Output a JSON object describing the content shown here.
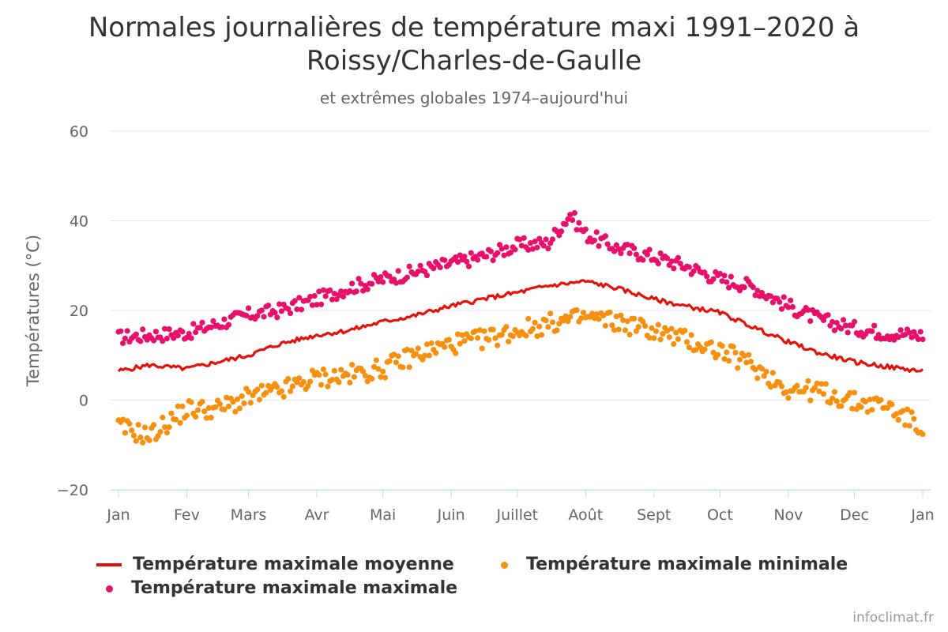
{
  "title_line1": "Normales journalières de température maxi 1991–2020 à",
  "title_line2": "Roissy/Charles-de-Gaulle",
  "subtitle": "et extrêmes globales 1974–aujourd'hui",
  "credit": "infoclimat.fr",
  "legend": [
    {
      "label": "Température maximale moyenne",
      "symbol": "line",
      "color": "#e3120b"
    },
    {
      "label": "Température maximale minimale",
      "symbol": "dot",
      "color": "#f7900f"
    },
    {
      "label": "Température maximale maximale",
      "symbol": "dot",
      "color": "#e8106a"
    }
  ],
  "chart_data": {
    "type": "line",
    "title": "Normales journalières de température maxi 1991–2020 à Roissy/Charles-de-Gaulle",
    "subtitle": "et extrêmes globales 1974–aujourd'hui",
    "xlabel": "",
    "ylabel": "Températures (°C)",
    "ylim": [
      -20,
      60
    ],
    "yticks": [
      -20,
      0,
      20,
      40,
      60
    ],
    "ytick_labels": [
      "−20",
      "0",
      "20",
      "40",
      "60"
    ],
    "xticks": [
      "Jan",
      "Fev",
      "Mars",
      "Avr",
      "Mai",
      "Juin",
      "Juillet",
      "Août",
      "Sept",
      "Oct",
      "Nov",
      "Dec",
      "Jan"
    ],
    "x_unit": "month start, 1st of month; last tick = next January",
    "grid": true,
    "legend_position": "bottom",
    "series": [
      {
        "name": "Température maximale moyenne",
        "type": "line",
        "color": "#e3120b",
        "sample_points": [
          {
            "x": "01-01",
            "y": 6.5
          },
          {
            "x": "01-15",
            "y": 7.8
          },
          {
            "x": "02-01",
            "y": 7.0
          },
          {
            "x": "02-15",
            "y": 8.5
          },
          {
            "x": "03-01",
            "y": 10.0
          },
          {
            "x": "03-15",
            "y": 12.5
          },
          {
            "x": "04-01",
            "y": 14.5
          },
          {
            "x": "04-15",
            "y": 15.5
          },
          {
            "x": "05-01",
            "y": 17.5
          },
          {
            "x": "05-15",
            "y": 18.8
          },
          {
            "x": "06-01",
            "y": 21.0
          },
          {
            "x": "06-15",
            "y": 22.5
          },
          {
            "x": "07-01",
            "y": 24.0
          },
          {
            "x": "07-15",
            "y": 25.5
          },
          {
            "x": "08-01",
            "y": 26.5
          },
          {
            "x": "08-15",
            "y": 25.0
          },
          {
            "x": "09-01",
            "y": 22.5
          },
          {
            "x": "09-15",
            "y": 21.0
          },
          {
            "x": "10-01",
            "y": 19.5
          },
          {
            "x": "10-15",
            "y": 16.5
          },
          {
            "x": "11-01",
            "y": 13.0
          },
          {
            "x": "11-15",
            "y": 10.5
          },
          {
            "x": "12-01",
            "y": 8.5
          },
          {
            "x": "12-15",
            "y": 7.5
          },
          {
            "x": "12-31",
            "y": 6.5
          }
        ]
      },
      {
        "name": "Température maximale minimale",
        "type": "scatter",
        "color": "#f7900f",
        "sample_points": [
          {
            "x": "01-01",
            "y": -6.0
          },
          {
            "x": "01-15",
            "y": -8.0
          },
          {
            "x": "02-01",
            "y": -2.0
          },
          {
            "x": "02-15",
            "y": -2.0
          },
          {
            "x": "03-01",
            "y": 0.5
          },
          {
            "x": "03-15",
            "y": 2.0
          },
          {
            "x": "04-01",
            "y": 5.0
          },
          {
            "x": "04-15",
            "y": 5.5
          },
          {
            "x": "05-01",
            "y": 7.0
          },
          {
            "x": "05-15",
            "y": 10.0
          },
          {
            "x": "06-01",
            "y": 12.5
          },
          {
            "x": "06-15",
            "y": 13.5
          },
          {
            "x": "07-01",
            "y": 15.5
          },
          {
            "x": "07-15",
            "y": 17.0
          },
          {
            "x": "08-01",
            "y": 18.5
          },
          {
            "x": "08-15",
            "y": 17.5
          },
          {
            "x": "09-01",
            "y": 15.5
          },
          {
            "x": "09-15",
            "y": 13.5
          },
          {
            "x": "10-01",
            "y": 11.0
          },
          {
            "x": "10-15",
            "y": 8.0
          },
          {
            "x": "11-01",
            "y": 2.5
          },
          {
            "x": "11-15",
            "y": 2.0
          },
          {
            "x": "12-01",
            "y": -0.5
          },
          {
            "x": "12-15",
            "y": -1.0
          },
          {
            "x": "12-31",
            "y": -6.0
          }
        ]
      },
      {
        "name": "Température maximale maximale",
        "type": "scatter",
        "color": "#e8106a",
        "sample_points": [
          {
            "x": "01-01",
            "y": 14.0
          },
          {
            "x": "01-15",
            "y": 14.5
          },
          {
            "x": "02-01",
            "y": 15.0
          },
          {
            "x": "02-15",
            "y": 17.0
          },
          {
            "x": "03-01",
            "y": 19.0
          },
          {
            "x": "03-15",
            "y": 20.0
          },
          {
            "x": "04-01",
            "y": 22.5
          },
          {
            "x": "04-15",
            "y": 25.0
          },
          {
            "x": "05-01",
            "y": 27.0
          },
          {
            "x": "05-15",
            "y": 28.5
          },
          {
            "x": "06-01",
            "y": 30.5
          },
          {
            "x": "06-15",
            "y": 32.0
          },
          {
            "x": "07-01",
            "y": 34.5
          },
          {
            "x": "07-15",
            "y": 35.0
          },
          {
            "x": "07-25",
            "y": 41.5
          },
          {
            "x": "08-01",
            "y": 37.0
          },
          {
            "x": "08-15",
            "y": 34.0
          },
          {
            "x": "09-01",
            "y": 32.0
          },
          {
            "x": "09-15",
            "y": 30.0
          },
          {
            "x": "10-01",
            "y": 27.0
          },
          {
            "x": "10-15",
            "y": 25.5
          },
          {
            "x": "11-01",
            "y": 21.0
          },
          {
            "x": "11-15",
            "y": 18.0
          },
          {
            "x": "12-01",
            "y": 16.0
          },
          {
            "x": "12-15",
            "y": 15.0
          },
          {
            "x": "12-31",
            "y": 14.5
          }
        ]
      }
    ]
  }
}
